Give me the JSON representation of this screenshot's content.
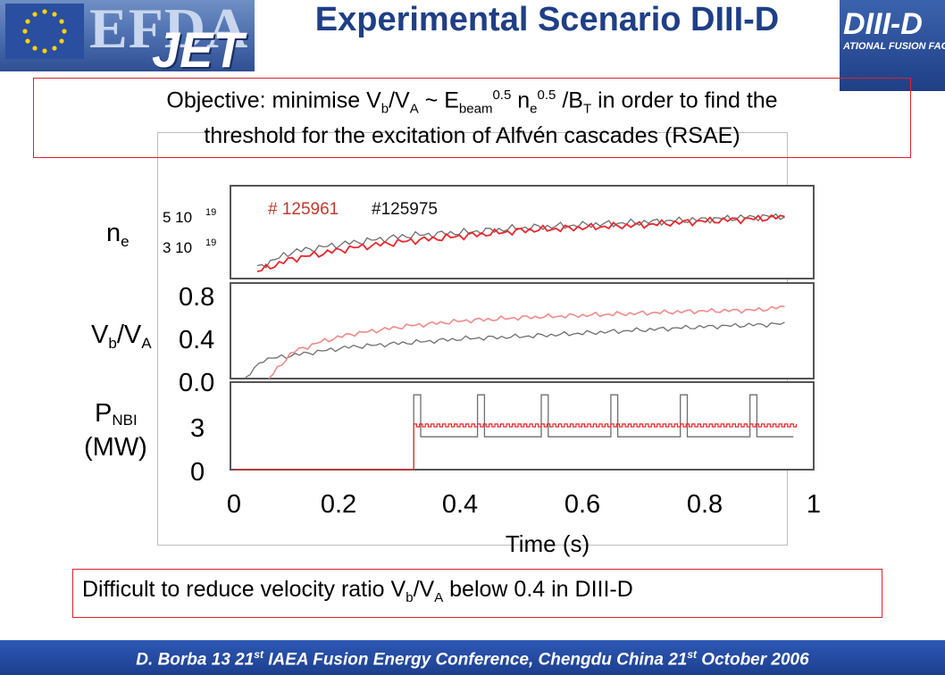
{
  "header": {
    "title": "Experimental Scenario DIII-D",
    "left_logo": {
      "text_1": "EFDA",
      "text_2": "JET",
      "icon": "eu-flag-icon"
    },
    "right_logo": {
      "text": "DIII-D",
      "subtext": "ATIONAL FUSION FACILITY"
    }
  },
  "objective": {
    "prefix": "Objective:  minimise V",
    "line2": "threshold for the excitation  of Alfvén cascades (RSAE)"
  },
  "figure": {
    "row_labels": {
      "ne": "n",
      "ne_sub": "e",
      "vr": "V",
      "vr_sub1": "b",
      "vr_mid": "/V",
      "vr_sub2": "A",
      "pnbi": "P",
      "pnbi_sub": "NBI",
      "pnbi_unit": "(MW)"
    },
    "ne_ticks": [
      "5 10",
      "3 10"
    ],
    "ne_exp": "19",
    "vr_ticks": [
      "0.8",
      "0.4",
      "0.0"
    ],
    "pnbi_ticks": [
      "3",
      "0"
    ],
    "x_ticks": [
      "0",
      "0.2",
      "0.4",
      "0.6",
      "0.8",
      "1"
    ],
    "xlabel": "Time (s)",
    "legend": {
      "shot_red": "# 125961",
      "shot_gray": "#125975"
    },
    "colors": {
      "red": "#e8282e",
      "gray": "#6e6e6e",
      "red_light": "#f08a8a"
    }
  },
  "chart_data": [
    {
      "type": "line",
      "panel": "n_e",
      "xlabel": "",
      "ylabel": "n_e",
      "ylim": [
        1e+19,
        6e+19
      ],
      "series": [
        {
          "name": "# 125961",
          "x": [
            0.04,
            0.1,
            0.2,
            0.3,
            0.4,
            0.5,
            0.6,
            0.7,
            0.8,
            0.9,
            0.95
          ],
          "y": [
            1.3e+19,
            2e+19,
            2.6e+19,
            3e+19,
            3.3e+19,
            3.6e+19,
            3.75e+19,
            3.9e+19,
            4.1e+19,
            4.25e+19,
            4.35e+19
          ]
        },
        {
          "name": "#125975",
          "x": [
            0.04,
            0.1,
            0.2,
            0.3,
            0.4,
            0.5,
            0.6,
            0.7,
            0.8,
            0.9,
            0.95
          ],
          "y": [
            1.5e+19,
            2.4e+19,
            2.9e+19,
            3.3e+19,
            3.5e+19,
            3.75e+19,
            3.9e+19,
            4.05e+19,
            4.2e+19,
            4.35e+19,
            4.4e+19
          ]
        }
      ]
    },
    {
      "type": "line",
      "panel": "Vb/VA",
      "ylim": [
        0.0,
        1.0
      ],
      "series": [
        {
          "name": "# 125961",
          "x": [
            0.06,
            0.1,
            0.15,
            0.2,
            0.3,
            0.4,
            0.5,
            0.6,
            0.7,
            0.8,
            0.9,
            0.95
          ],
          "y": [
            0.0,
            0.25,
            0.35,
            0.42,
            0.5,
            0.55,
            0.58,
            0.6,
            0.62,
            0.64,
            0.65,
            0.68
          ]
        },
        {
          "name": "#125975",
          "x": [
            0.02,
            0.05,
            0.1,
            0.2,
            0.3,
            0.4,
            0.5,
            0.6,
            0.7,
            0.8,
            0.9,
            0.95
          ],
          "y": [
            0.0,
            0.18,
            0.22,
            0.3,
            0.34,
            0.38,
            0.4,
            0.43,
            0.46,
            0.49,
            0.51,
            0.52
          ]
        }
      ]
    },
    {
      "type": "line",
      "panel": "P_NBI (MW)",
      "xlabel": "Time (s)",
      "xlim": [
        0,
        1
      ],
      "ylim": [
        0,
        4.5
      ],
      "series": [
        {
          "name": "# 125961",
          "level": 2.5,
          "on_time": 0.31
        },
        {
          "name": "#125975",
          "level": 1.8,
          "on_time": 0.31,
          "spike_level": 4.1,
          "spike_times": [
            0.31,
            0.42,
            0.53,
            0.65,
            0.77,
            0.89
          ]
        }
      ]
    }
  ],
  "conclusion": {
    "prefix": "Difficult to reduce velocity ratio ",
    "suffix": " below 0.4 in DIII-D"
  },
  "footer": {
    "text_1": "D. Borba  13 21",
    "sup_1": "st",
    "text_2": " IAEA Fusion Energy Conference, Chengdu China 21",
    "sup_2": "st",
    "text_3": " October 2006"
  }
}
